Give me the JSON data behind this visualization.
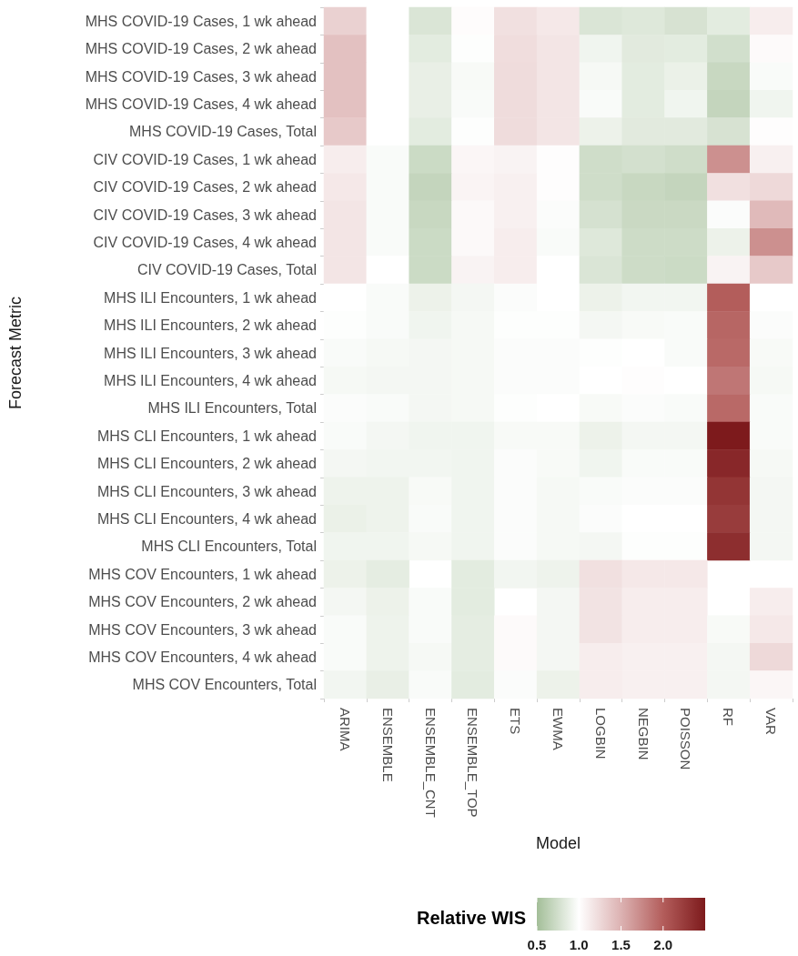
{
  "chart_data": {
    "type": "heatmap",
    "xlabel": "Model",
    "ylabel": "Forecast Metric",
    "clabel": "Relative WIS",
    "categories": [
      "ARIMA",
      "ENSEMBLE",
      "ENSEMBLE_CNT",
      "ENSEMBLE_TOP",
      "ETS",
      "EWMA",
      "LOGBIN",
      "NEGBIN",
      "POISSON",
      "RF",
      "VAR"
    ],
    "y_categories": [
      "MHS COVID-19 Cases, 1 wk ahead",
      "MHS COVID-19 Cases, 2 wk ahead",
      "MHS COVID-19 Cases, 3 wk ahead",
      "MHS COVID-19 Cases, 4 wk ahead",
      "MHS COVID-19 Cases, Total",
      "CIV COVID-19 Cases, 1 wk ahead",
      "CIV COVID-19 Cases, 2 wk ahead",
      "CIV COVID-19 Cases, 3 wk ahead",
      "CIV COVID-19 Cases, 4 wk ahead",
      "CIV COVID-19 Cases, Total",
      "MHS ILI Encounters, 1 wk ahead",
      "MHS ILI Encounters, 2 wk ahead",
      "MHS ILI Encounters, 3 wk ahead",
      "MHS ILI Encounters, 4 wk ahead",
      "MHS ILI Encounters, Total",
      "MHS CLI Encounters, 1 wk ahead",
      "MHS CLI Encounters, 2 wk ahead",
      "MHS CLI Encounters, 3 wk ahead",
      "MHS CLI Encounters, 4 wk ahead",
      "MHS CLI Encounters, Total",
      "MHS COV Encounters, 1 wk ahead",
      "MHS COV Encounters, 2 wk ahead",
      "MHS COV Encounters, 3 wk ahead",
      "MHS COV Encounters, 4 wk ahead",
      "MHS COV Encounters, Total"
    ],
    "cells": [
      [
        1.3,
        1.0,
        0.8,
        1.02,
        1.2,
        1.15,
        0.8,
        0.82,
        0.78,
        0.85,
        1.12
      ],
      [
        1.4,
        1.0,
        0.85,
        0.99,
        1.22,
        1.17,
        0.92,
        0.84,
        0.85,
        0.75,
        1.03
      ],
      [
        1.4,
        1.0,
        0.88,
        0.96,
        1.23,
        1.17,
        0.95,
        0.85,
        0.89,
        0.7,
        0.97
      ],
      [
        1.4,
        1.0,
        0.88,
        0.97,
        1.23,
        1.17,
        0.97,
        0.85,
        0.92,
        0.68,
        0.92
      ],
      [
        1.35,
        1.0,
        0.85,
        0.99,
        1.23,
        1.17,
        0.9,
        0.84,
        0.84,
        0.78,
        1.01
      ],
      [
        1.12,
        0.97,
        0.72,
        1.06,
        1.08,
        1.01,
        0.74,
        0.76,
        0.74,
        1.7,
        1.1
      ],
      [
        1.15,
        0.97,
        0.68,
        1.07,
        1.1,
        1.01,
        0.74,
        0.7,
        0.68,
        1.2,
        1.25
      ],
      [
        1.17,
        0.97,
        0.7,
        1.04,
        1.1,
        0.98,
        0.77,
        0.71,
        0.71,
        0.98,
        1.45
      ],
      [
        1.17,
        0.97,
        0.72,
        1.04,
        1.12,
        0.97,
        0.82,
        0.73,
        0.73,
        0.9,
        1.7
      ],
      [
        1.17,
        1.0,
        0.72,
        1.08,
        1.12,
        1.0,
        0.8,
        0.73,
        0.72,
        1.08,
        1.35
      ],
      [
        1.0,
        0.97,
        0.9,
        0.94,
        0.98,
        1.0,
        0.9,
        0.93,
        0.93,
        2.0,
        1.0
      ],
      [
        0.99,
        0.97,
        0.92,
        0.95,
        0.99,
        0.99,
        0.94,
        0.96,
        0.97,
        1.95,
        0.98
      ],
      [
        0.97,
        0.95,
        0.94,
        0.95,
        0.98,
        0.98,
        0.99,
        1.0,
        0.97,
        1.93,
        0.96
      ],
      [
        0.95,
        0.94,
        0.94,
        0.95,
        0.98,
        0.98,
        1.0,
        1.01,
        1.0,
        1.85,
        0.95
      ],
      [
        0.98,
        0.97,
        0.94,
        0.95,
        0.99,
        1.0,
        0.96,
        0.98,
        0.97,
        1.93,
        0.97
      ],
      [
        0.97,
        0.94,
        0.92,
        0.92,
        0.96,
        0.96,
        0.9,
        0.94,
        0.94,
        2.5,
        0.97
      ],
      [
        0.94,
        0.93,
        0.93,
        0.92,
        0.98,
        0.96,
        0.92,
        0.97,
        0.97,
        2.4,
        0.95
      ],
      [
        0.91,
        0.91,
        0.96,
        0.92,
        0.98,
        0.95,
        0.97,
        0.98,
        0.98,
        2.3,
        0.94
      ],
      [
        0.89,
        0.91,
        0.97,
        0.92,
        0.98,
        0.95,
        0.98,
        1.0,
        1.0,
        2.25,
        0.94
      ],
      [
        0.92,
        0.92,
        0.95,
        0.92,
        0.98,
        0.95,
        0.94,
        0.99,
        0.99,
        2.35,
        0.94
      ],
      [
        0.9,
        0.86,
        null,
        0.85,
        0.93,
        0.91,
        1.2,
        1.15,
        1.15,
        null,
        null
      ],
      [
        0.94,
        0.9,
        0.97,
        0.85,
        null,
        0.94,
        1.18,
        1.12,
        1.12,
        null,
        1.12
      ],
      [
        0.97,
        0.91,
        0.97,
        0.86,
        1.03,
        0.94,
        1.18,
        1.12,
        1.12,
        0.96,
        1.15
      ],
      [
        0.97,
        0.91,
        0.95,
        0.86,
        1.03,
        0.94,
        1.12,
        1.1,
        1.1,
        0.94,
        1.25
      ],
      [
        0.93,
        0.88,
        0.97,
        0.85,
        0.98,
        0.9,
        1.12,
        1.1,
        1.1,
        0.94,
        1.06
      ]
    ],
    "clim": [
      0.5,
      2.5
    ],
    "cticks": [
      {
        "value": 0.5,
        "label": "0.5"
      },
      {
        "value": 1,
        "label": "1.0"
      },
      {
        "value": 1.5,
        "label": "1.5"
      },
      {
        "value": 2,
        "label": "2.0"
      }
    ]
  }
}
